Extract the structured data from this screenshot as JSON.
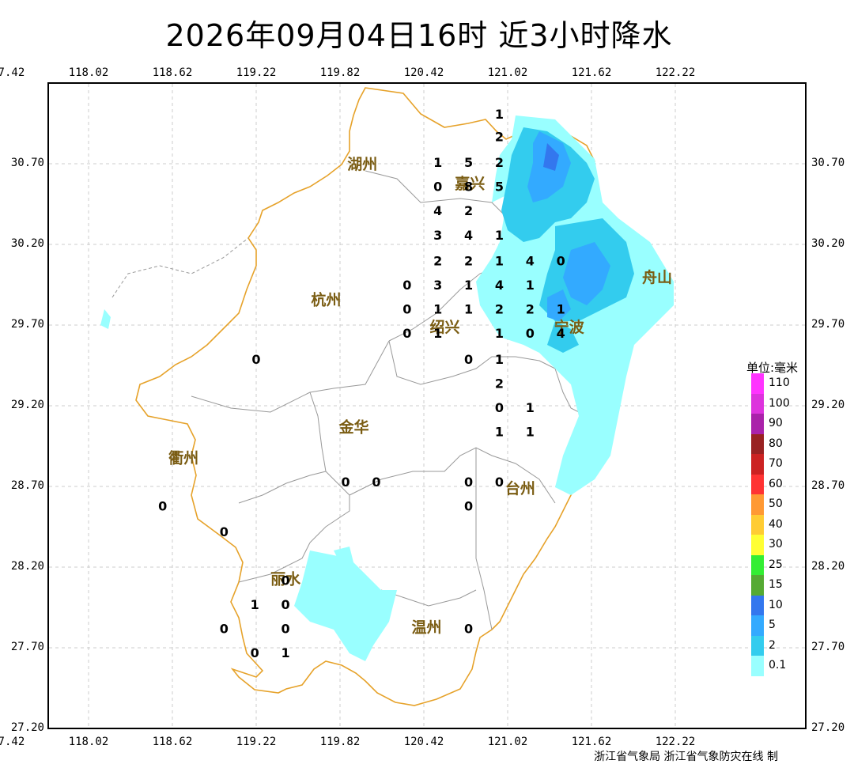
{
  "title": "2026年09月04日16时  近3小时降水",
  "credit": "浙江省气象局 浙江省气象防灾在线 制",
  "x_ticks": [
    "117.42",
    "118.02",
    "118.62",
    "119.22",
    "119.82",
    "120.42",
    "121.02",
    "121.62",
    "122.22"
  ],
  "y_ticks": [
    "30.70",
    "30.20",
    "29.70",
    "29.20",
    "28.70",
    "28.20",
    "27.70",
    "27.20"
  ],
  "legend": {
    "title": "单位:毫米",
    "items": [
      {
        "label": "110",
        "color": "#ff33ff"
      },
      {
        "label": "100",
        "color": "#dd33dd"
      },
      {
        "label": "90",
        "color": "#aa22aa"
      },
      {
        "label": "80",
        "color": "#992222"
      },
      {
        "label": "70",
        "color": "#cc2222"
      },
      {
        "label": "60",
        "color": "#ff3333"
      },
      {
        "label": "50",
        "color": "#ff9933"
      },
      {
        "label": "40",
        "color": "#ffcc33"
      },
      {
        "label": "30",
        "color": "#ffff33"
      },
      {
        "label": "25",
        "color": "#33ee33"
      },
      {
        "label": "15",
        "color": "#55aa33"
      },
      {
        "label": "10",
        "color": "#3377ee"
      },
      {
        "label": "5",
        "color": "#33aaff"
      },
      {
        "label": "2",
        "color": "#33ccee"
      },
      {
        "label": "0.1",
        "color": "#99ffff"
      }
    ]
  },
  "cities": [
    {
      "name": "湖州",
      "lon": 119.98,
      "lat": 30.7
    },
    {
      "name": "嘉兴",
      "lon": 120.75,
      "lat": 30.58
    },
    {
      "name": "杭州",
      "lon": 119.72,
      "lat": 29.86
    },
    {
      "name": "绍兴",
      "lon": 120.57,
      "lat": 29.69
    },
    {
      "name": "宁波",
      "lon": 121.46,
      "lat": 29.69
    },
    {
      "name": "舟山",
      "lon": 122.09,
      "lat": 30.0
    },
    {
      "name": "金华",
      "lon": 119.92,
      "lat": 29.07
    },
    {
      "name": "衢州",
      "lon": 118.7,
      "lat": 28.88
    },
    {
      "name": "台州",
      "lon": 121.11,
      "lat": 28.69
    },
    {
      "name": "丽水",
      "lon": 119.43,
      "lat": 28.13
    },
    {
      "name": "温州",
      "lon": 120.44,
      "lat": 27.83
    }
  ],
  "stations": [
    {
      "value": "1",
      "lon": 120.96,
      "lat": 31.01
    },
    {
      "value": "2",
      "lon": 120.96,
      "lat": 30.87
    },
    {
      "value": "1",
      "lon": 120.52,
      "lat": 30.71
    },
    {
      "value": "5",
      "lon": 120.74,
      "lat": 30.71
    },
    {
      "value": "2",
      "lon": 120.96,
      "lat": 30.71
    },
    {
      "value": "0",
      "lon": 120.52,
      "lat": 30.56
    },
    {
      "value": "8",
      "lon": 120.74,
      "lat": 30.56
    },
    {
      "value": "5",
      "lon": 120.96,
      "lat": 30.56
    },
    {
      "value": "4",
      "lon": 120.52,
      "lat": 30.41
    },
    {
      "value": "2",
      "lon": 120.74,
      "lat": 30.41
    },
    {
      "value": "3",
      "lon": 120.52,
      "lat": 30.26
    },
    {
      "value": "4",
      "lon": 120.74,
      "lat": 30.26
    },
    {
      "value": "1",
      "lon": 120.96,
      "lat": 30.26
    },
    {
      "value": "2",
      "lon": 120.52,
      "lat": 30.1
    },
    {
      "value": "2",
      "lon": 120.74,
      "lat": 30.1
    },
    {
      "value": "1",
      "lon": 120.96,
      "lat": 30.1
    },
    {
      "value": "4",
      "lon": 121.18,
      "lat": 30.1
    },
    {
      "value": "0",
      "lon": 121.4,
      "lat": 30.1
    },
    {
      "value": "0",
      "lon": 120.3,
      "lat": 29.95
    },
    {
      "value": "3",
      "lon": 120.52,
      "lat": 29.95
    },
    {
      "value": "1",
      "lon": 120.74,
      "lat": 29.95
    },
    {
      "value": "4",
      "lon": 120.96,
      "lat": 29.95
    },
    {
      "value": "1",
      "lon": 121.18,
      "lat": 29.95
    },
    {
      "value": "0",
      "lon": 120.3,
      "lat": 29.8
    },
    {
      "value": "1",
      "lon": 120.52,
      "lat": 29.8
    },
    {
      "value": "1",
      "lon": 120.74,
      "lat": 29.8
    },
    {
      "value": "2",
      "lon": 120.96,
      "lat": 29.8
    },
    {
      "value": "2",
      "lon": 121.18,
      "lat": 29.8
    },
    {
      "value": "1",
      "lon": 121.4,
      "lat": 29.8
    },
    {
      "value": "0",
      "lon": 120.3,
      "lat": 29.65
    },
    {
      "value": "1",
      "lon": 120.52,
      "lat": 29.65
    },
    {
      "value": "1",
      "lon": 120.96,
      "lat": 29.65
    },
    {
      "value": "0",
      "lon": 121.18,
      "lat": 29.65
    },
    {
      "value": "4",
      "lon": 121.4,
      "lat": 29.65
    },
    {
      "value": "0",
      "lon": 119.22,
      "lat": 29.49
    },
    {
      "value": "0",
      "lon": 120.74,
      "lat": 29.49
    },
    {
      "value": "1",
      "lon": 120.96,
      "lat": 29.49
    },
    {
      "value": "2",
      "lon": 120.96,
      "lat": 29.34
    },
    {
      "value": "0",
      "lon": 120.96,
      "lat": 29.19
    },
    {
      "value": "1",
      "lon": 121.18,
      "lat": 29.19
    },
    {
      "value": "1",
      "lon": 120.96,
      "lat": 29.04
    },
    {
      "value": "1",
      "lon": 121.18,
      "lat": 29.04
    },
    {
      "value": "0",
      "lon": 119.86,
      "lat": 28.73
    },
    {
      "value": "0",
      "lon": 120.08,
      "lat": 28.73
    },
    {
      "value": "0",
      "lon": 120.74,
      "lat": 28.73
    },
    {
      "value": "0",
      "lon": 120.96,
      "lat": 28.73
    },
    {
      "value": "0",
      "lon": 118.55,
      "lat": 28.58
    },
    {
      "value": "0",
      "lon": 120.74,
      "lat": 28.58
    },
    {
      "value": "0",
      "lon": 118.99,
      "lat": 28.42
    },
    {
      "value": "0",
      "lon": 119.43,
      "lat": 28.12
    },
    {
      "value": "1",
      "lon": 119.21,
      "lat": 27.97
    },
    {
      "value": "0",
      "lon": 119.43,
      "lat": 27.97
    },
    {
      "value": "0",
      "lon": 118.99,
      "lat": 27.82
    },
    {
      "value": "0",
      "lon": 119.43,
      "lat": 27.82
    },
    {
      "value": "0",
      "lon": 120.74,
      "lat": 27.82
    },
    {
      "value": "0",
      "lon": 119.21,
      "lat": 27.67
    },
    {
      "value": "1",
      "lon": 119.43,
      "lat": 27.67
    }
  ]
}
